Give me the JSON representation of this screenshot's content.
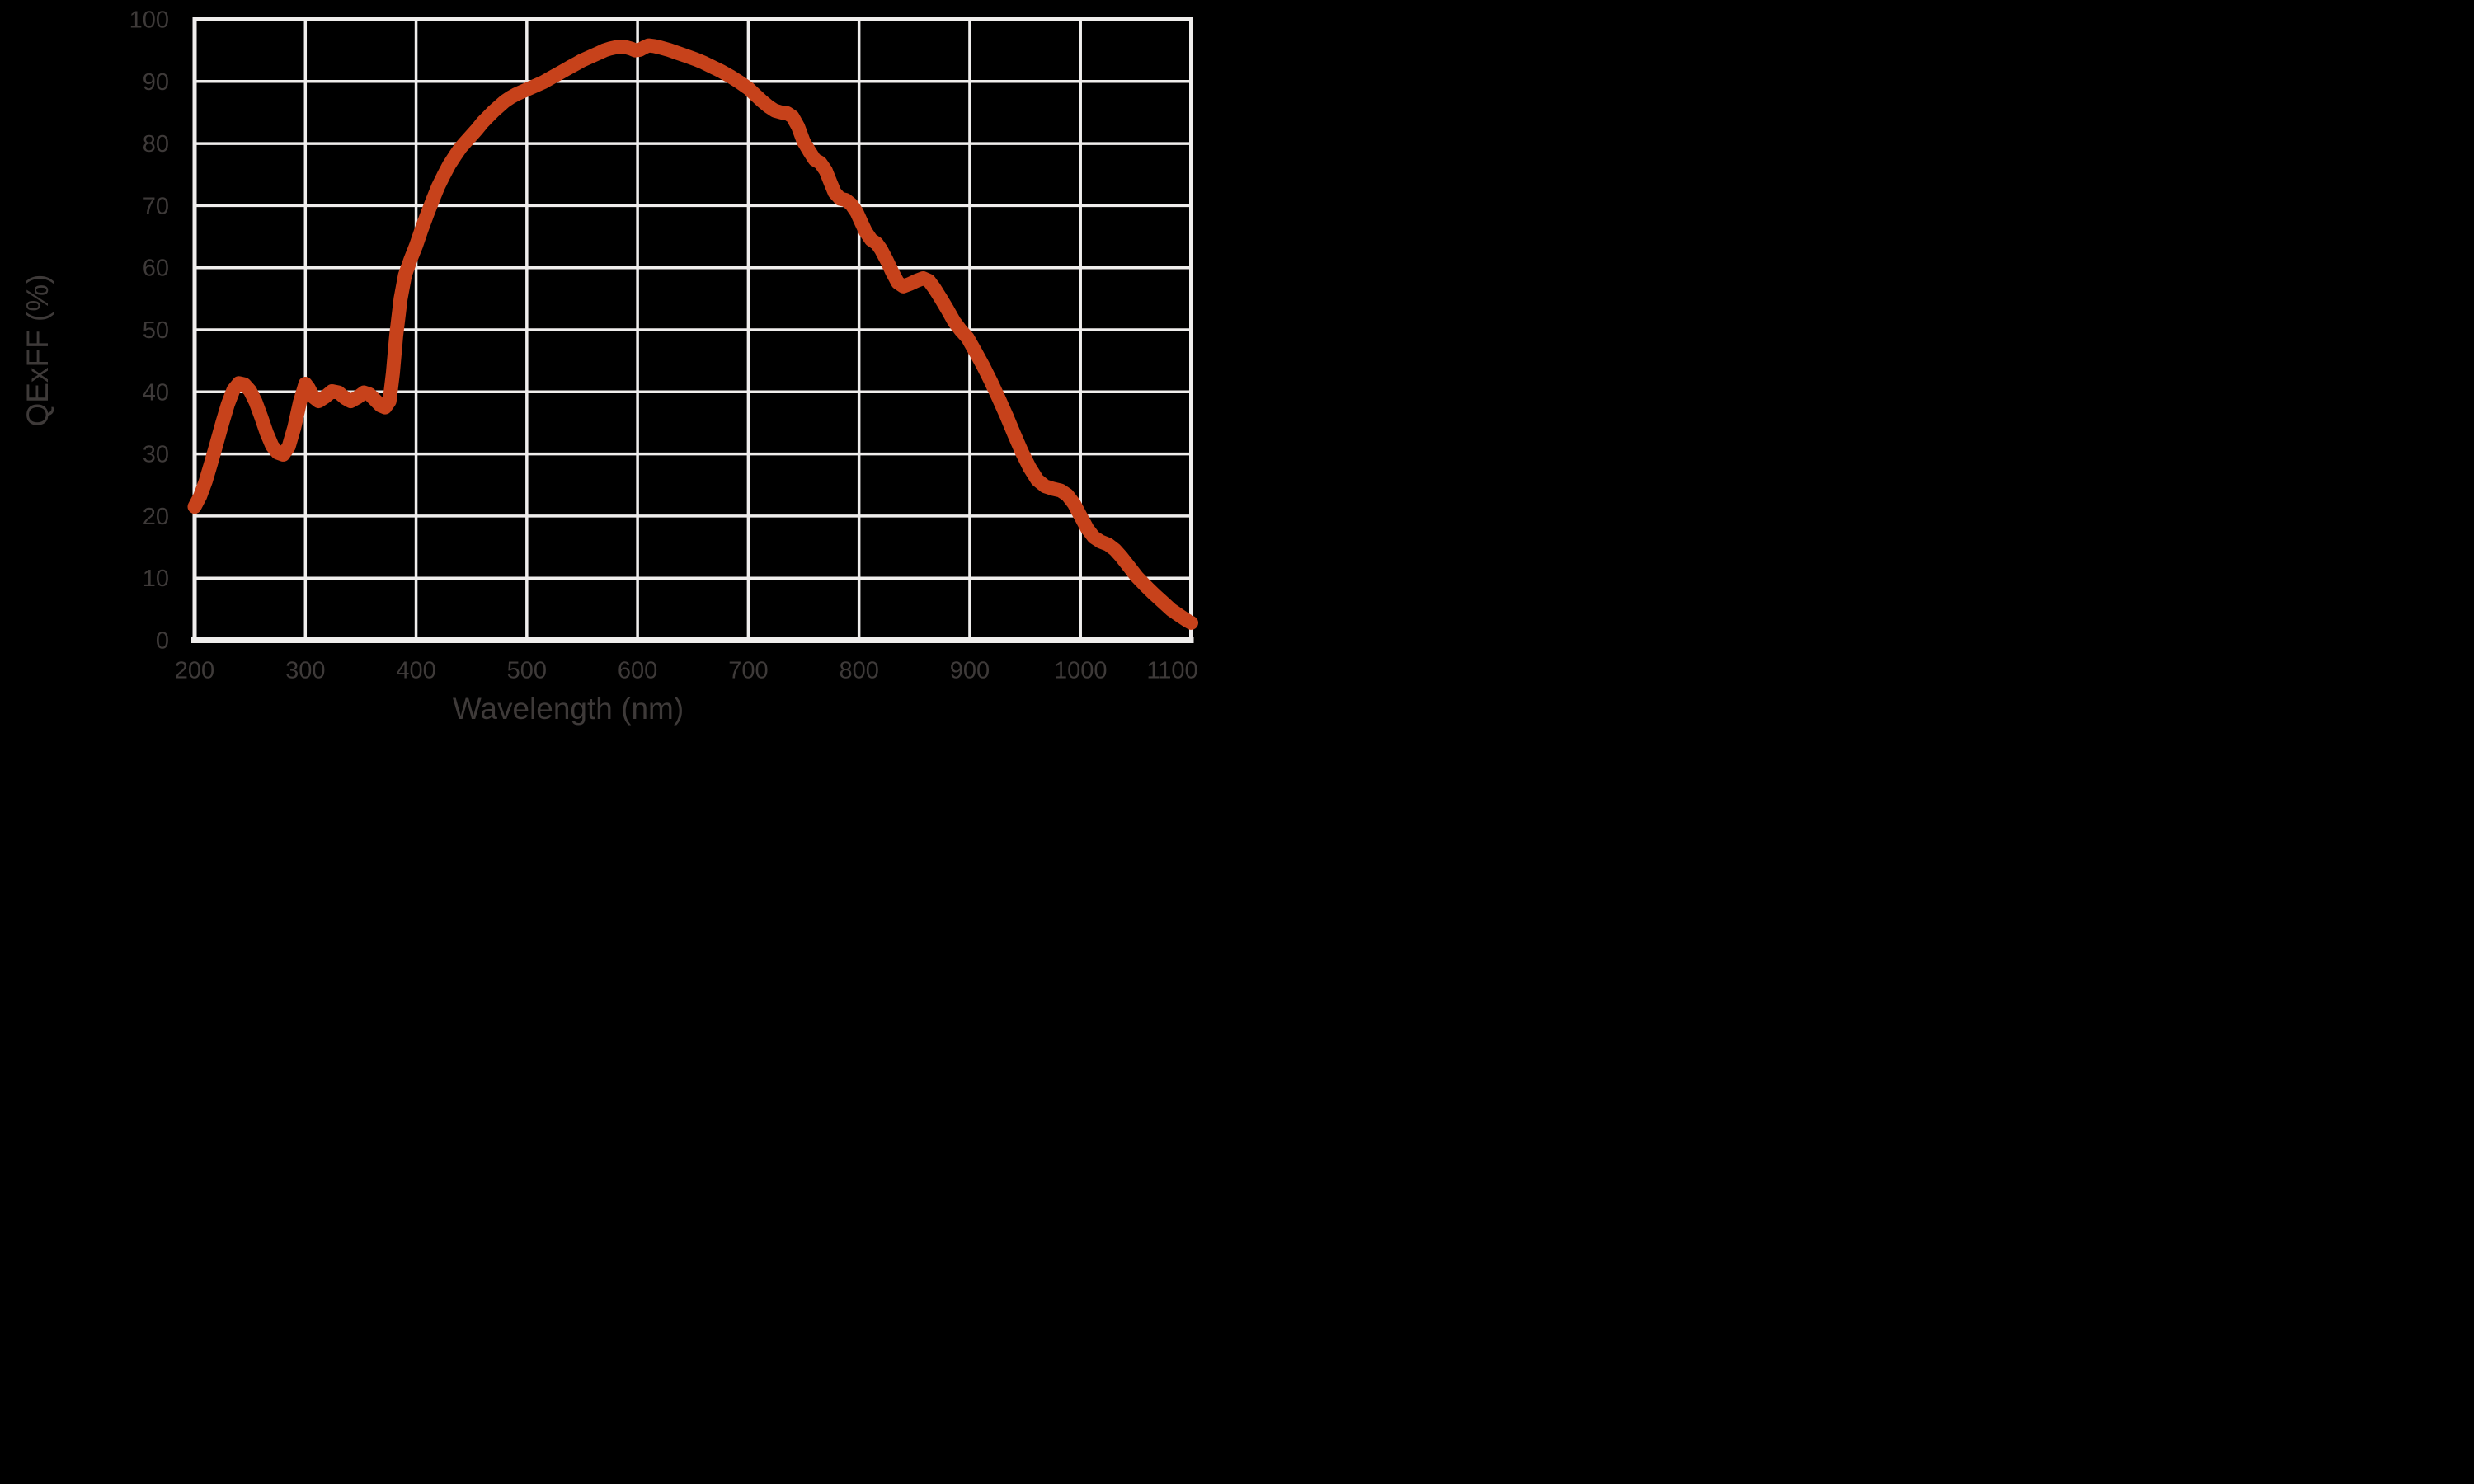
{
  "colors": {
    "background": "#000000",
    "grid": "#EFEDEC",
    "axis_text": "#3E3A39",
    "curve": "#C7421B"
  },
  "chart_data": {
    "type": "line",
    "title": "",
    "xlabel": "Wavelength (nm)",
    "ylabel": "QExFF (%)",
    "xlim": [
      200,
      1100
    ],
    "ylim": [
      0,
      100
    ],
    "grid": true,
    "legend": "none",
    "x_ticks": [
      200,
      300,
      400,
      500,
      600,
      700,
      800,
      900,
      1000,
      1100
    ],
    "y_ticks": [
      0,
      10,
      20,
      30,
      40,
      50,
      60,
      70,
      80,
      90,
      100
    ],
    "series": [
      {
        "name": "QExFF",
        "color": "#C7421B",
        "points": [
          [
            200,
            21.5
          ],
          [
            205,
            23.2
          ],
          [
            210,
            25.6
          ],
          [
            215,
            28.6
          ],
          [
            220,
            31.8
          ],
          [
            225,
            35.0
          ],
          [
            230,
            38.0
          ],
          [
            235,
            40.3
          ],
          [
            240,
            41.4
          ],
          [
            245,
            41.2
          ],
          [
            250,
            40.2
          ],
          [
            255,
            38.4
          ],
          [
            260,
            36.0
          ],
          [
            265,
            33.4
          ],
          [
            270,
            31.3
          ],
          [
            275,
            30.2
          ],
          [
            280,
            29.9
          ],
          [
            285,
            31.2
          ],
          [
            290,
            34.3
          ],
          [
            295,
            38.3
          ],
          [
            300,
            41.3
          ],
          [
            303,
            40.6
          ],
          [
            307,
            39.2
          ],
          [
            312,
            38.5
          ],
          [
            318,
            39.2
          ],
          [
            324,
            40.1
          ],
          [
            330,
            39.9
          ],
          [
            336,
            39.0
          ],
          [
            341,
            38.5
          ],
          [
            347,
            39.1
          ],
          [
            353,
            39.9
          ],
          [
            358,
            39.6
          ],
          [
            363,
            38.7
          ],
          [
            368,
            37.8
          ],
          [
            372,
            37.5
          ],
          [
            376,
            38.5
          ],
          [
            379,
            43.0
          ],
          [
            382,
            49.0
          ],
          [
            386,
            55.0
          ],
          [
            390,
            58.8
          ],
          [
            395,
            61.3
          ],
          [
            400,
            63.6
          ],
          [
            405,
            66.2
          ],
          [
            410,
            68.6
          ],
          [
            415,
            70.9
          ],
          [
            420,
            73.1
          ],
          [
            425,
            74.9
          ],
          [
            430,
            76.6
          ],
          [
            435,
            78.0
          ],
          [
            440,
            79.3
          ],
          [
            445,
            80.3
          ],
          [
            450,
            81.3
          ],
          [
            455,
            82.3
          ],
          [
            460,
            83.4
          ],
          [
            465,
            84.3
          ],
          [
            470,
            85.2
          ],
          [
            475,
            86.0
          ],
          [
            480,
            86.8
          ],
          [
            485,
            87.4
          ],
          [
            490,
            87.9
          ],
          [
            495,
            88.3
          ],
          [
            500,
            88.7
          ],
          [
            505,
            89.1
          ],
          [
            510,
            89.5
          ],
          [
            515,
            89.9
          ],
          [
            520,
            90.4
          ],
          [
            525,
            90.9
          ],
          [
            530,
            91.4
          ],
          [
            535,
            91.9
          ],
          [
            540,
            92.4
          ],
          [
            545,
            92.9
          ],
          [
            550,
            93.4
          ],
          [
            555,
            93.8
          ],
          [
            560,
            94.2
          ],
          [
            565,
            94.6
          ],
          [
            570,
            95.0
          ],
          [
            575,
            95.3
          ],
          [
            580,
            95.5
          ],
          [
            585,
            95.6
          ],
          [
            590,
            95.5
          ],
          [
            594,
            95.3
          ],
          [
            598,
            95.0
          ],
          [
            602,
            95.1
          ],
          [
            606,
            95.5
          ],
          [
            610,
            95.8
          ],
          [
            615,
            95.7
          ],
          [
            620,
            95.5
          ],
          [
            628,
            95.1
          ],
          [
            636,
            94.6
          ],
          [
            644,
            94.1
          ],
          [
            652,
            93.6
          ],
          [
            660,
            93.0
          ],
          [
            668,
            92.3
          ],
          [
            676,
            91.6
          ],
          [
            684,
            90.8
          ],
          [
            692,
            89.9
          ],
          [
            700,
            88.9
          ],
          [
            706,
            87.9
          ],
          [
            712,
            86.9
          ],
          [
            718,
            86.0
          ],
          [
            724,
            85.3
          ],
          [
            730,
            85.0
          ],
          [
            735,
            84.9
          ],
          [
            740,
            84.3
          ],
          [
            745,
            82.7
          ],
          [
            750,
            80.3
          ],
          [
            755,
            78.8
          ],
          [
            760,
            77.4
          ],
          [
            765,
            76.9
          ],
          [
            770,
            75.6
          ],
          [
            774,
            73.8
          ],
          [
            778,
            72.1
          ],
          [
            783,
            71.1
          ],
          [
            788,
            70.9
          ],
          [
            793,
            70.2
          ],
          [
            798,
            68.9
          ],
          [
            802,
            67.3
          ],
          [
            806,
            65.8
          ],
          [
            811,
            64.5
          ],
          [
            816,
            63.9
          ],
          [
            820,
            62.9
          ],
          [
            825,
            61.2
          ],
          [
            830,
            59.3
          ],
          [
            835,
            57.6
          ],
          [
            840,
            57.0
          ],
          [
            846,
            57.4
          ],
          [
            852,
            57.9
          ],
          [
            858,
            58.3
          ],
          [
            863,
            57.9
          ],
          [
            868,
            56.7
          ],
          [
            874,
            55.0
          ],
          [
            880,
            53.2
          ],
          [
            886,
            51.3
          ],
          [
            892,
            49.9
          ],
          [
            898,
            48.7
          ],
          [
            905,
            46.5
          ],
          [
            912,
            44.2
          ],
          [
            919,
            41.7
          ],
          [
            926,
            39.0
          ],
          [
            933,
            36.2
          ],
          [
            940,
            33.2
          ],
          [
            947,
            30.3
          ],
          [
            954,
            27.8
          ],
          [
            961,
            25.8
          ],
          [
            968,
            24.8
          ],
          [
            975,
            24.4
          ],
          [
            982,
            24.1
          ],
          [
            988,
            23.4
          ],
          [
            994,
            22.0
          ],
          [
            1000,
            20.0
          ],
          [
            1006,
            18.0
          ],
          [
            1012,
            16.6
          ],
          [
            1018,
            15.9
          ],
          [
            1025,
            15.4
          ],
          [
            1031,
            14.6
          ],
          [
            1037,
            13.4
          ],
          [
            1044,
            11.8
          ],
          [
            1051,
            10.2
          ],
          [
            1058,
            8.9
          ],
          [
            1066,
            7.5
          ],
          [
            1074,
            6.2
          ],
          [
            1082,
            4.9
          ],
          [
            1090,
            3.9
          ],
          [
            1096,
            3.2
          ],
          [
            1100,
            2.8
          ]
        ]
      }
    ]
  }
}
